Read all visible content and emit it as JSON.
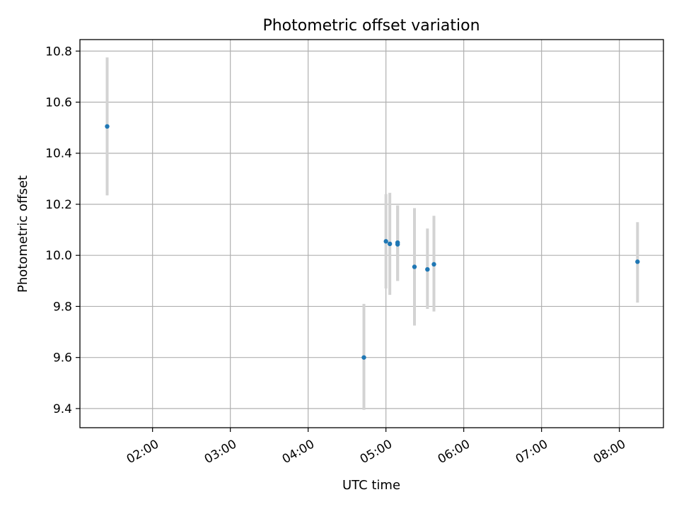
{
  "chart_data": {
    "type": "scatter",
    "title": "Photometric offset variation",
    "xlabel": "UTC time",
    "ylabel": "Photometric offset",
    "x_ticks": [
      "02:00",
      "03:00",
      "04:00",
      "05:00",
      "06:00",
      "07:00",
      "08:00"
    ],
    "y_ticks": [
      "9.4",
      "9.6",
      "9.8",
      "10.0",
      "10.2",
      "10.4",
      "10.6",
      "10.8"
    ],
    "xlim": [
      "01:04",
      "08:34"
    ],
    "ylim": [
      9.325,
      10.845
    ],
    "grid": true,
    "colors": {
      "point": "#1f77b4",
      "errorbar": "#d3d3d3",
      "grid": "#b0b0b0"
    },
    "points": [
      {
        "x": "01:25",
        "y": 10.505,
        "ylo": 10.235,
        "yhi": 10.775
      },
      {
        "x": "04:43",
        "y": 9.6,
        "ylo": 9.395,
        "yhi": 9.81
      },
      {
        "x": "05:00",
        "y": 10.055,
        "ylo": 9.87,
        "yhi": 10.24
      },
      {
        "x": "05:03",
        "y": 10.045,
        "ylo": 9.845,
        "yhi": 10.245
      },
      {
        "x": "05:09",
        "y": 10.05,
        "ylo": 9.9,
        "yhi": 10.195
      },
      {
        "x": "05:09",
        "y": 10.043,
        "ylo": 9.9,
        "yhi": 10.195
      },
      {
        "x": "05:22",
        "y": 9.955,
        "ylo": 9.725,
        "yhi": 10.185
      },
      {
        "x": "05:32",
        "y": 9.945,
        "ylo": 9.79,
        "yhi": 10.105
      },
      {
        "x": "05:37",
        "y": 9.965,
        "ylo": 9.78,
        "yhi": 10.155
      },
      {
        "x": "08:14",
        "y": 9.975,
        "ylo": 9.815,
        "yhi": 10.13
      }
    ]
  }
}
